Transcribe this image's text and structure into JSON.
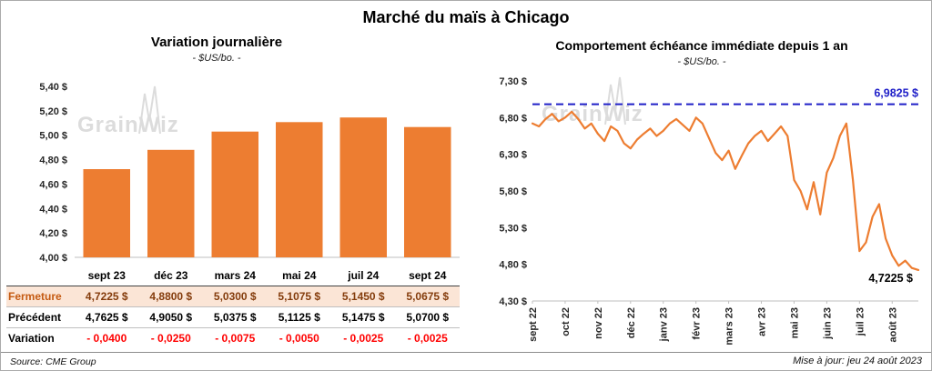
{
  "header": {
    "title": "Marché du maïs à Chicago"
  },
  "watermark": "GrainWiz",
  "left_chart": {
    "title": "Variation journalière",
    "subtitle": "- $US/bo. -"
  },
  "right_chart": {
    "title": "Comportement échéance immédiate depuis 1 an",
    "subtitle": "- $US/bo. -"
  },
  "table": {
    "rows": [
      {
        "key": "fermeture",
        "label": "Fermeture",
        "values": [
          "4,7225 $",
          "4,8800 $",
          "5,0300 $",
          "5,1075 $",
          "5,1450 $",
          "5,0675 $"
        ]
      },
      {
        "key": "precedent",
        "label": "Précédent",
        "values": [
          "4,7625 $",
          "4,9050 $",
          "5,0375 $",
          "5,1125 $",
          "5,1475 $",
          "5,0700 $"
        ]
      },
      {
        "key": "variation",
        "label": "Variation",
        "values": [
          "- 0,0400",
          "- 0,0250",
          "- 0,0075",
          "- 0,0050",
          "- 0,0025",
          "- 0,0025"
        ]
      }
    ]
  },
  "footer": {
    "source": "Source: CME Group",
    "updated": "Mise à jour: jeu 24 août 2023"
  },
  "colors": {
    "bar": "#ED7D31",
    "line": "#ED7D31",
    "reference": "#1F1FC8",
    "negative": "#FF0000",
    "highlight_bg": "#FBE5D6",
    "highlight_label": "#C55A11",
    "highlight_value": "#843C0C",
    "watermark": "#DCDCDC"
  },
  "chart_data": [
    {
      "type": "bar",
      "title": "Variation journalière",
      "subtitle": "- $US/bo. -",
      "categories": [
        "sept 23",
        "déc 23",
        "mars 24",
        "mai 24",
        "juil 24",
        "sept 24"
      ],
      "values": [
        4.7225,
        4.88,
        5.03,
        5.1075,
        5.145,
        5.0675
      ],
      "ylim": [
        4.0,
        5.4
      ],
      "yticks": [
        {
          "value": 4.0,
          "label": "4,00 $"
        },
        {
          "value": 4.2,
          "label": "4,20 $"
        },
        {
          "value": 4.4,
          "label": "4,40 $"
        },
        {
          "value": 4.6,
          "label": "4,60 $"
        },
        {
          "value": 4.8,
          "label": "4,80 $"
        },
        {
          "value": 5.0,
          "label": "5,00 $"
        },
        {
          "value": 5.2,
          "label": "5,20 $"
        },
        {
          "value": 5.4,
          "label": "5,40 $"
        }
      ],
      "bar_color": "#ED7D31",
      "grid": false,
      "legend": "none"
    },
    {
      "type": "line",
      "title": "Comportement échéance immédiate depuis 1 an",
      "subtitle": "- $US/bo. -",
      "x_labels": [
        "sept 22",
        "oct 22",
        "nov 22",
        "déc 22",
        "janv 23",
        "févr 23",
        "mars 23",
        "avr 23",
        "mai 23",
        "juin 23",
        "juil 23",
        "août 23"
      ],
      "points_per_label": 5,
      "values": [
        6.72,
        6.68,
        6.78,
        6.85,
        6.75,
        6.8,
        6.88,
        6.78,
        6.65,
        6.72,
        6.58,
        6.48,
        6.68,
        6.62,
        6.45,
        6.38,
        6.5,
        6.58,
        6.65,
        6.55,
        6.62,
        6.72,
        6.78,
        6.7,
        6.62,
        6.8,
        6.72,
        6.52,
        6.32,
        6.22,
        6.35,
        6.1,
        6.28,
        6.45,
        6.55,
        6.62,
        6.48,
        6.58,
        6.68,
        6.55,
        5.95,
        5.8,
        5.55,
        5.92,
        5.48,
        6.05,
        6.25,
        6.55,
        6.72,
        5.95,
        4.98,
        5.1,
        5.45,
        5.62,
        5.15,
        4.92,
        4.78,
        4.85,
        4.75,
        4.7225
      ],
      "ylim": [
        4.3,
        7.3
      ],
      "yticks": [
        {
          "value": 4.3,
          "label": "4,30 $"
        },
        {
          "value": 4.8,
          "label": "4,80 $"
        },
        {
          "value": 5.3,
          "label": "5,30 $"
        },
        {
          "value": 5.8,
          "label": "5,80 $"
        },
        {
          "value": 6.3,
          "label": "6,30 $"
        },
        {
          "value": 6.8,
          "label": "6,80 $"
        },
        {
          "value": 7.3,
          "label": "7,30 $"
        }
      ],
      "line_color": "#ED7D31",
      "reference_line": {
        "value": 6.9825,
        "label": "6,9825 $",
        "style": "dashed",
        "color": "#1F1FC8"
      },
      "last_value": 4.7225,
      "end_label": "4,7225 $",
      "grid": false,
      "legend": "none"
    }
  ]
}
